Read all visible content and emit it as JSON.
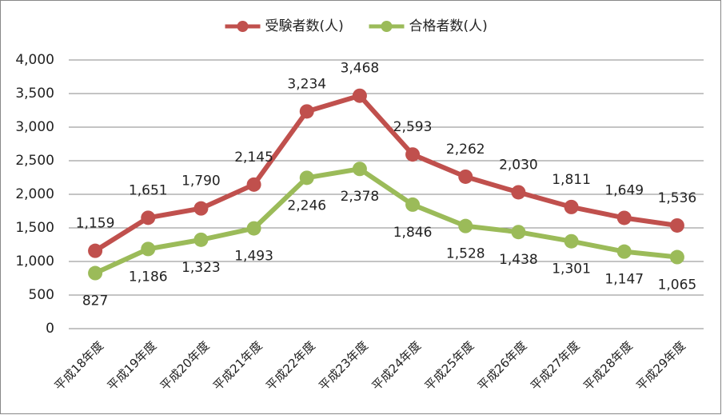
{
  "chart_data": {
    "type": "line",
    "categories": [
      "平成18年度",
      "平成19年度",
      "平成20年度",
      "平成21年度",
      "平成22年度",
      "平成23年度",
      "平成24年度",
      "平成25年度",
      "平成26年度",
      "平成27年度",
      "平成28年度",
      "平成29年度"
    ],
    "series": [
      {
        "name": "受験者数(人)",
        "color": "#c0504d",
        "values": [
          1159,
          1651,
          1790,
          2145,
          3234,
          3468,
          2593,
          2262,
          2030,
          1811,
          1649,
          1536
        ],
        "value_labels": [
          "1,159",
          "1,651",
          "1,790",
          "2,145",
          "3,234",
          "3,468",
          "2,593",
          "2,262",
          "2,030",
          "1,811",
          "1,649",
          "1,536"
        ]
      },
      {
        "name": "合格者数(人)",
        "color": "#9bbb59",
        "values": [
          827,
          1186,
          1323,
          1493,
          2246,
          2378,
          1846,
          1528,
          1438,
          1301,
          1147,
          1065
        ],
        "value_labels": [
          "827",
          "1,186",
          "1,323",
          "1,493",
          "2,246",
          "2,378",
          "1,846",
          "1,528",
          "1,438",
          "1,301",
          "1,147",
          "1,065"
        ]
      }
    ],
    "ylim": [
      0,
      4000
    ],
    "yticks": [
      0,
      500,
      {
        "value": 1000,
        "label": "1,000"
      },
      {
        "value": 1500,
        "label": "1,500"
      },
      {
        "value": 2000,
        "label": "2,000"
      },
      {
        "value": 2500,
        "label": "2,500"
      },
      {
        "value": 3000,
        "label": "3,000"
      },
      {
        "value": 3500,
        "label": "3,500"
      },
      {
        "value": 4000,
        "label": "4,000"
      }
    ],
    "grid": true,
    "legend": "top"
  }
}
